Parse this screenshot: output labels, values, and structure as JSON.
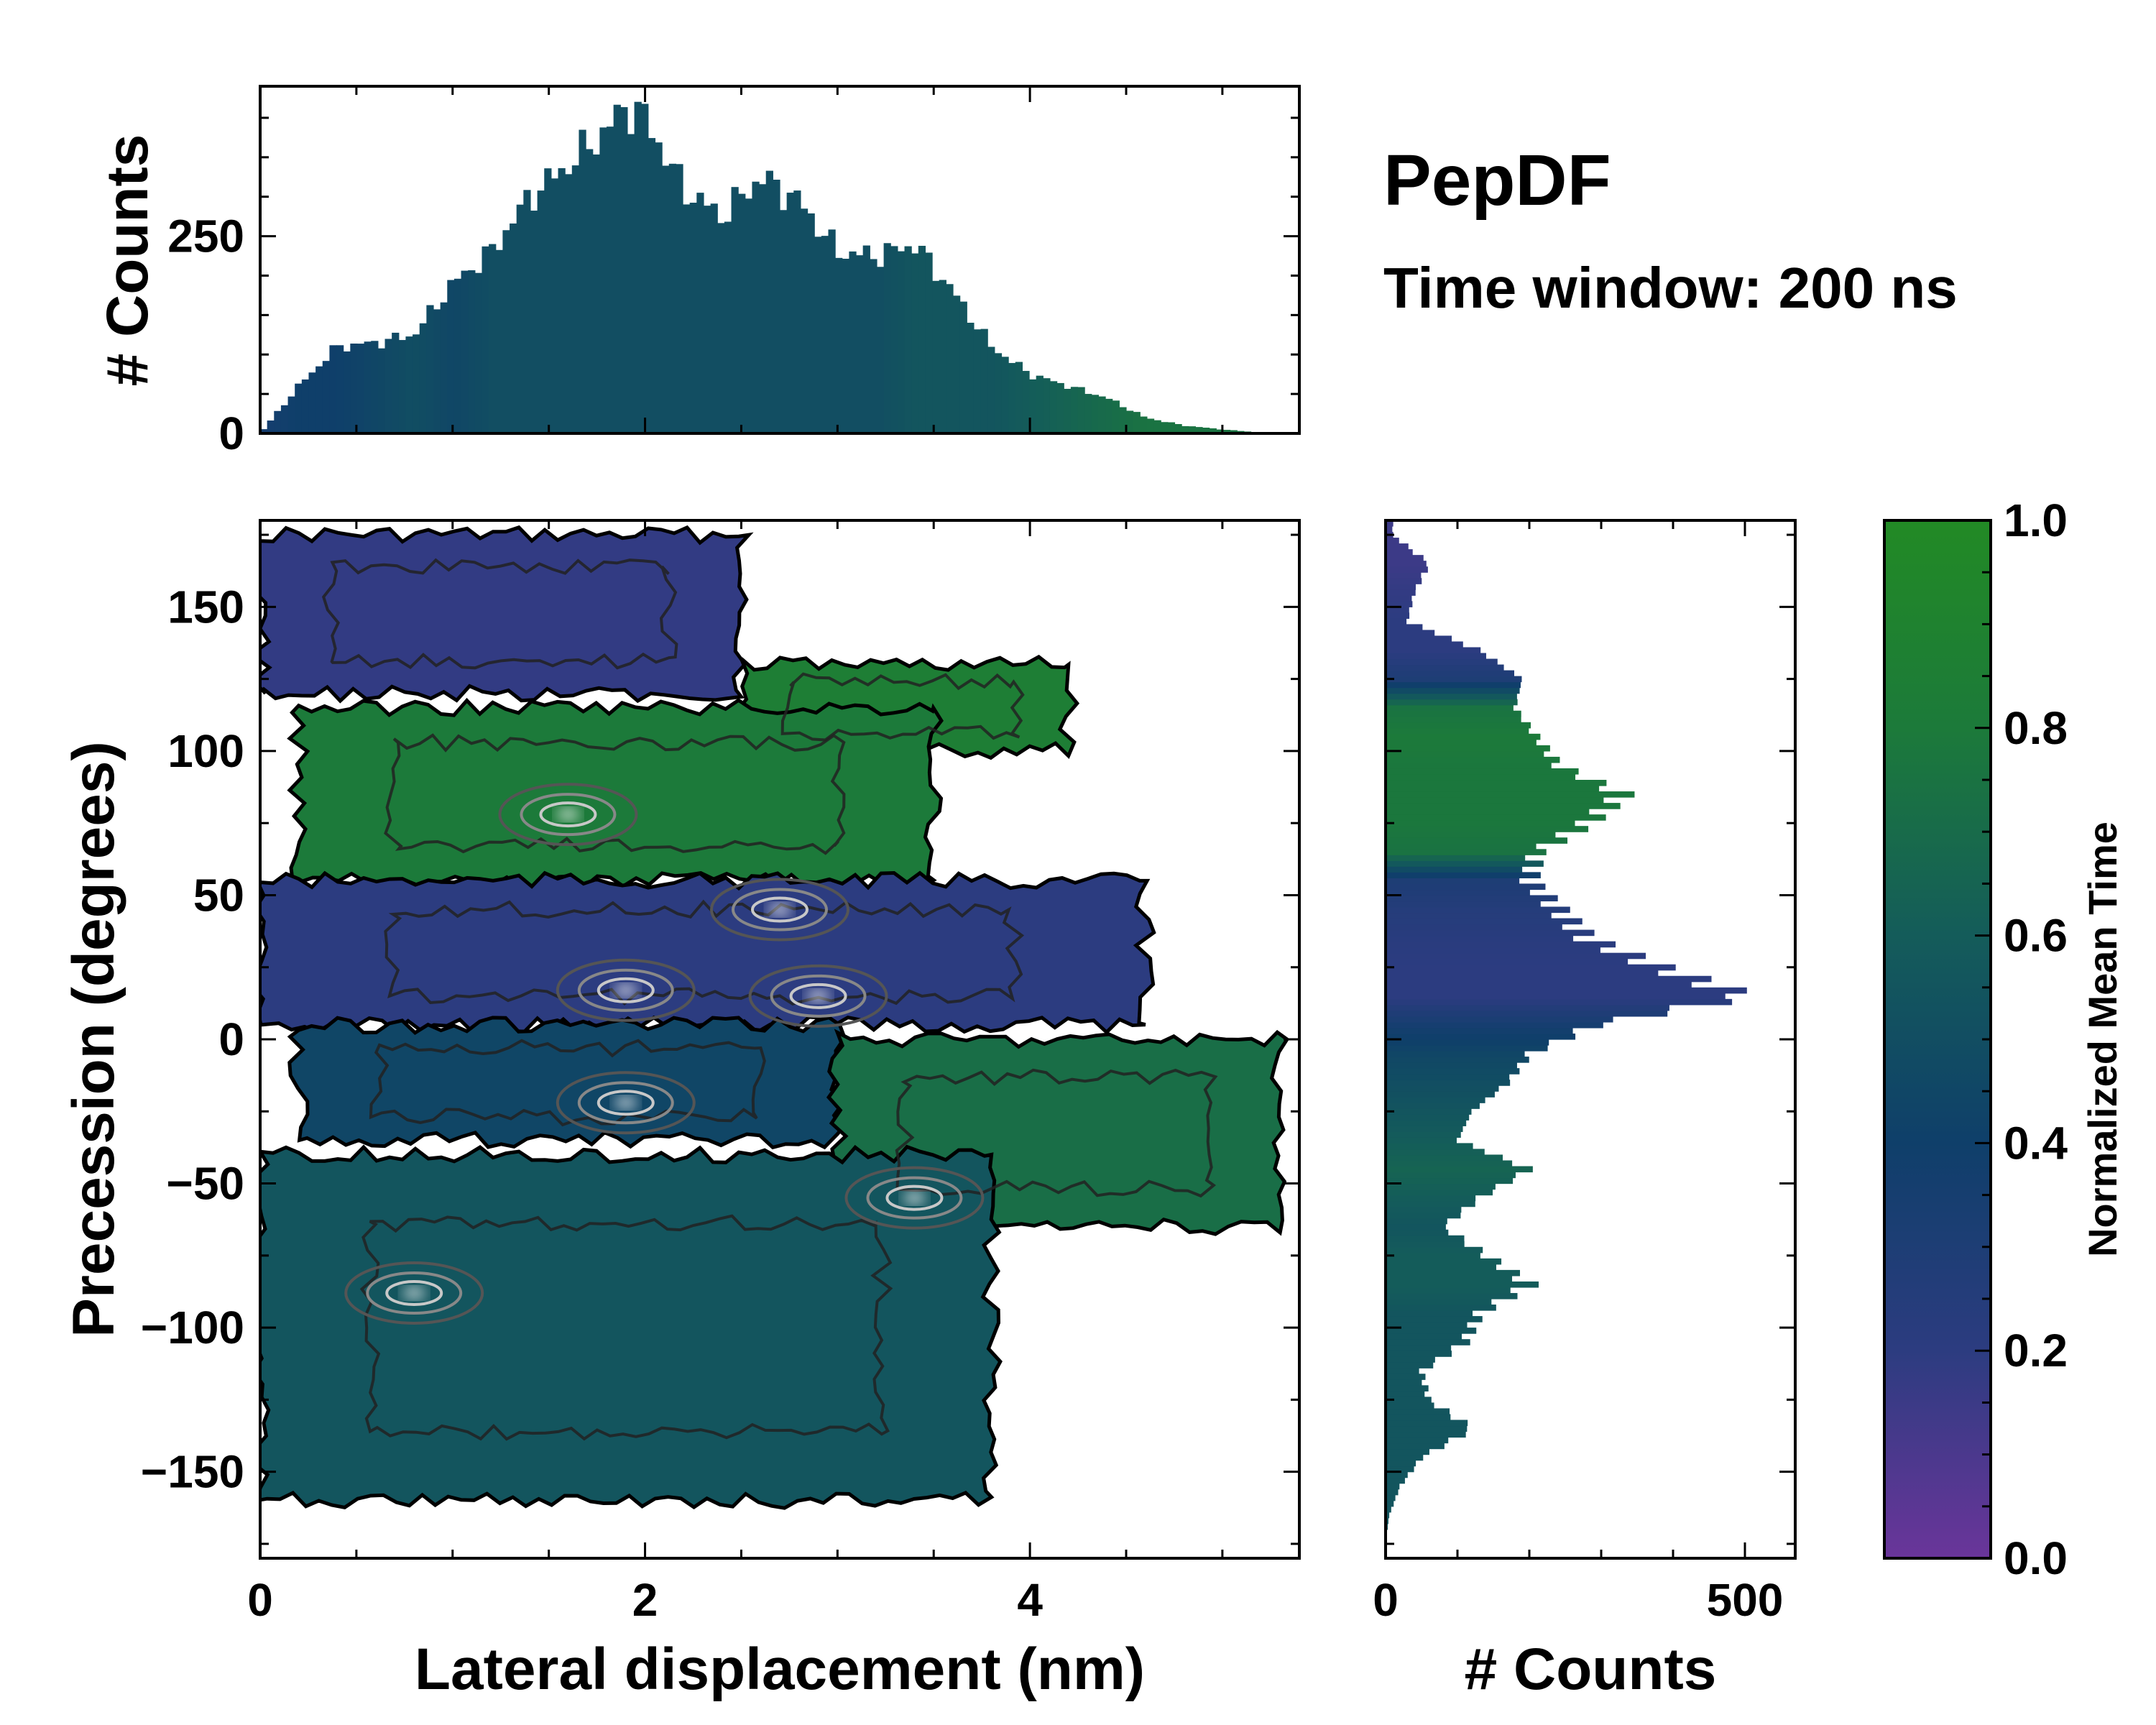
{
  "chart_data": [
    {
      "type": "heatmap",
      "panel": "main",
      "title": "PepDF",
      "subtitle": "Time window: 200 ns",
      "xlabel": "Lateral displacement (nm)",
      "ylabel": "Precession (degrees)",
      "xlim": [
        0,
        5.4
      ],
      "ylim": [
        -180,
        180
      ],
      "xticks": [
        0,
        2,
        4
      ],
      "xtick_labels": [
        "0",
        "2",
        "4"
      ],
      "yticks": [
        150,
        100,
        50,
        0,
        -50,
        -100,
        -150
      ],
      "ytick_labels": [
        "150",
        "100",
        "50",
        "0",
        "−50",
        "−100",
        "−150"
      ],
      "colorbar": {
        "label": "Normalized Mean Time",
        "range": [
          0.0,
          1.0
        ],
        "ticks": [
          0.0,
          0.2,
          0.4,
          0.6,
          0.8,
          1.0
        ],
        "tick_labels": [
          "0.0",
          "0.2",
          "0.4",
          "0.6",
          "0.8",
          "1.0"
        ],
        "colors": [
          "#6a359a",
          "#2c3c80",
          "#0f3f6a",
          "#145c5a",
          "#1c7a3a",
          "#228a25"
        ]
      },
      "regions": [
        {
          "x_range": [
            0.0,
            2.5
          ],
          "y_range": [
            120,
            175
          ],
          "mean_time": 0.18
        },
        {
          "x_range": [
            2.5,
            4.2
          ],
          "y_range": [
            100,
            130
          ],
          "mean_time": 0.85
        },
        {
          "x_range": [
            0.2,
            3.5
          ],
          "y_range": [
            55,
            115
          ],
          "mean_time": 0.8
        },
        {
          "x_range": [
            0.0,
            4.6
          ],
          "y_range": [
            5,
            55
          ],
          "mean_time": 0.2
        },
        {
          "x_range": [
            0.2,
            3.0
          ],
          "y_range": [
            -35,
            5
          ],
          "mean_time": 0.45
        },
        {
          "x_range": [
            3.0,
            5.3
          ],
          "y_range": [
            -65,
            0
          ],
          "mean_time": 0.72
        },
        {
          "x_range": [
            0.0,
            3.8
          ],
          "y_range": [
            -160,
            -40
          ],
          "mean_time": 0.55
        }
      ],
      "density_peaks": [
        {
          "x": 1.6,
          "y": 78
        },
        {
          "x": 1.9,
          "y": 17
        },
        {
          "x": 2.9,
          "y": 15
        },
        {
          "x": 2.7,
          "y": 45
        },
        {
          "x": 1.9,
          "y": -22
        },
        {
          "x": 0.8,
          "y": -88
        },
        {
          "x": 3.4,
          "y": -55
        }
      ]
    },
    {
      "type": "bar",
      "panel": "top-marginal",
      "xlabel": "",
      "ylabel": "# Counts",
      "xlim": [
        0,
        5.4
      ],
      "ylim": [
        0,
        440
      ],
      "yticks": [
        0,
        250
      ],
      "ytick_labels": [
        "0",
        "250"
      ],
      "x": [
        0.0,
        0.2,
        0.4,
        0.6,
        0.8,
        1.0,
        1.2,
        1.4,
        1.6,
        1.8,
        1.9,
        2.0,
        2.2,
        2.4,
        2.6,
        2.8,
        3.0,
        3.2,
        3.4,
        3.6,
        3.8,
        4.0,
        4.2,
        4.4,
        4.6,
        4.8,
        5.0,
        5.2,
        5.4
      ],
      "values": [
        0,
        60,
        110,
        115,
        125,
        190,
        230,
        300,
        340,
        385,
        415,
        400,
        310,
        275,
        325,
        295,
        230,
        225,
        240,
        180,
        110,
        75,
        60,
        45,
        20,
        10,
        5,
        1,
        0
      ],
      "mean_time": [
        0.35,
        0.4,
        0.4,
        0.45,
        0.5,
        0.45,
        0.5,
        0.5,
        0.5,
        0.5,
        0.5,
        0.5,
        0.5,
        0.5,
        0.5,
        0.5,
        0.5,
        0.5,
        0.55,
        0.55,
        0.55,
        0.6,
        0.65,
        0.7,
        0.75,
        0.75,
        0.75,
        0.75,
        0.75
      ]
    },
    {
      "type": "bar",
      "panel": "right-marginal",
      "orientation": "horizontal",
      "xlabel": "# Counts",
      "ylabel": "",
      "xlim": [
        0,
        570
      ],
      "ylim": [
        -180,
        180
      ],
      "xticks": [
        0,
        500
      ],
      "xtick_labels": [
        "0",
        "500"
      ],
      "y": [
        175,
        165,
        155,
        145,
        135,
        125,
        115,
        105,
        95,
        85,
        75,
        65,
        55,
        45,
        35,
        25,
        15,
        5,
        -5,
        -15,
        -25,
        -35,
        -45,
        -55,
        -65,
        -75,
        -85,
        -95,
        -105,
        -115,
        -125,
        -135,
        -145,
        -155,
        -165,
        -175
      ],
      "values": [
        10,
        60,
        40,
        30,
        130,
        190,
        180,
        210,
        240,
        330,
        280,
        210,
        200,
        240,
        280,
        380,
        500,
        290,
        200,
        170,
        120,
        100,
        200,
        130,
        80,
        140,
        200,
        130,
        110,
        50,
        60,
        120,
        50,
        20,
        5,
        0
      ],
      "mean_time": [
        0.15,
        0.15,
        0.18,
        0.2,
        0.2,
        0.3,
        0.75,
        0.8,
        0.78,
        0.78,
        0.78,
        0.75,
        0.3,
        0.25,
        0.22,
        0.2,
        0.2,
        0.35,
        0.45,
        0.5,
        0.55,
        0.6,
        0.65,
        0.6,
        0.55,
        0.6,
        0.6,
        0.55,
        0.55,
        0.55,
        0.55,
        0.55,
        0.55,
        0.55,
        0.55,
        0.55
      ]
    }
  ]
}
